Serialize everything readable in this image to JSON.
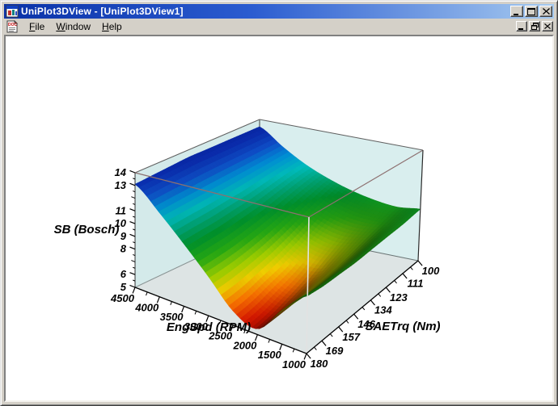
{
  "window": {
    "title": "UniPlot3DView - [UniPlot3DView1]",
    "controls": {
      "minimize": "minimize-icon",
      "maximize": "maximize-icon",
      "close": "close-icon"
    },
    "child_controls": {
      "minimize": "minimize-icon",
      "restore": "restore-icon",
      "close": "close-icon"
    }
  },
  "menu": {
    "items": [
      {
        "first": "F",
        "rest": "ile"
      },
      {
        "first": "W",
        "rest": "indow"
      },
      {
        "first": "H",
        "rest": "elp"
      }
    ]
  },
  "chart_data": {
    "type": "surface",
    "x_axis": {
      "label": "EngSpd (RPM)",
      "ticks": [
        4500,
        4000,
        3500,
        3000,
        2500,
        2000,
        1500,
        1000
      ],
      "range": [
        1000,
        4500
      ]
    },
    "y_axis": {
      "label": "SAETrq (Nm)",
      "ticks": [
        100,
        111,
        123,
        134,
        146,
        157,
        169,
        180
      ],
      "range": [
        100,
        180
      ]
    },
    "z_axis": {
      "label": "SB (Bosch)",
      "ticks": [
        14,
        13,
        11,
        10,
        9,
        8,
        6,
        5
      ],
      "minor_ticks": [
        12,
        7
      ],
      "range": [
        5,
        14
      ]
    },
    "surface": {
      "rpm": [
        1000,
        1500,
        2000,
        2500,
        3000,
        3500,
        4000,
        4500
      ],
      "trq": [
        100,
        111,
        123,
        134,
        146,
        157,
        169,
        180
      ],
      "sb": [
        [
          9.2,
          9.0,
          9.2,
          9.6,
          10.2,
          11.0,
          12.1,
          13.4
        ],
        [
          9.0,
          8.6,
          8.6,
          9.0,
          9.8,
          10.8,
          12.0,
          13.4
        ],
        [
          8.9,
          8.2,
          7.9,
          8.3,
          9.3,
          10.5,
          11.9,
          13.4
        ],
        [
          8.8,
          7.8,
          7.2,
          7.6,
          8.8,
          10.2,
          11.8,
          13.4
        ],
        [
          8.7,
          7.5,
          6.5,
          7.0,
          8.4,
          10.0,
          11.7,
          13.4
        ],
        [
          8.7,
          7.3,
          6.0,
          6.6,
          8.1,
          9.8,
          11.6,
          13.3
        ],
        [
          8.7,
          7.2,
          5.6,
          6.2,
          7.9,
          9.7,
          11.5,
          13.2
        ],
        [
          8.8,
          7.3,
          5.4,
          6.0,
          7.8,
          9.6,
          11.4,
          13.1
        ]
      ]
    },
    "colormap": [
      [
        0.0,
        150,
        0,
        0
      ],
      [
        0.06,
        215,
        25,
        0
      ],
      [
        0.14,
        255,
        120,
        0
      ],
      [
        0.22,
        250,
        215,
        0
      ],
      [
        0.3,
        165,
        215,
        0
      ],
      [
        0.4,
        40,
        175,
        20
      ],
      [
        0.5,
        0,
        150,
        45
      ],
      [
        0.58,
        0,
        165,
        115
      ],
      [
        0.66,
        0,
        190,
        190
      ],
      [
        0.74,
        0,
        145,
        215
      ],
      [
        0.82,
        15,
        80,
        205
      ],
      [
        0.9,
        10,
        45,
        175
      ],
      [
        1.0,
        5,
        25,
        140
      ]
    ],
    "colors": {
      "left_wall": "#d4eaea",
      "right_wall": "#d9eeee",
      "floor": "#dde4e4",
      "frame_back": "#606060",
      "frame_near_top": "#8d7070",
      "frame_front_edge": "#e2e2e2",
      "frame_right_edge": "#2a2a2a",
      "axis_line": "#000000"
    }
  }
}
